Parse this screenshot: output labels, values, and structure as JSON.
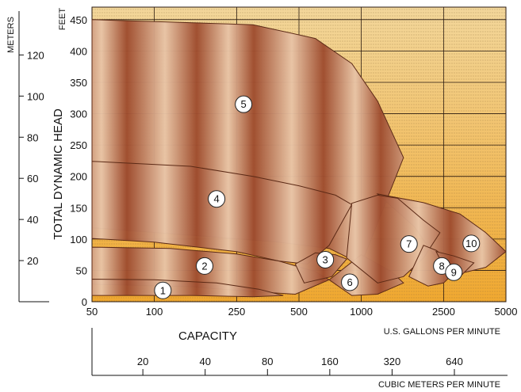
{
  "chart_data": {
    "type": "area",
    "title": "",
    "left_axis": {
      "unit": "FEET",
      "ticks": [
        0,
        50,
        100,
        150,
        200,
        250,
        300,
        350,
        400,
        450
      ],
      "ylim": [
        0,
        470
      ],
      "title": "TOTAL DYNAMIC HEAD"
    },
    "meters_axis": {
      "unit": "METERS",
      "ticks": [
        20,
        40,
        60,
        80,
        100,
        120
      ]
    },
    "x_axis": {
      "scale": "log",
      "unit": "U.S. GALLONS PER MINUTE",
      "ticks": [
        50,
        100,
        250,
        500,
        1000,
        2500,
        5000
      ],
      "xlim": [
        50,
        5000
      ],
      "title": "CAPACITY"
    },
    "cubic_axis": {
      "unit": "CUBIC METERS PER MINUTE",
      "ticks": [
        20,
        40,
        80,
        160,
        320,
        640
      ]
    },
    "grid": true,
    "series": [
      {
        "name": "1",
        "points": [
          [
            50,
            36
          ],
          [
            100,
            35
          ],
          [
            200,
            30
          ],
          [
            320,
            20
          ],
          [
            420,
            10
          ],
          [
            300,
            8
          ],
          [
            150,
            10
          ],
          [
            50,
            10
          ]
        ]
      },
      {
        "name": "2",
        "points": [
          [
            50,
            87
          ],
          [
            120,
            85
          ],
          [
            250,
            76
          ],
          [
            400,
            65
          ],
          [
            600,
            48
          ],
          [
            700,
            35
          ],
          [
            480,
            12
          ],
          [
            300,
            16
          ],
          [
            150,
            24
          ],
          [
            50,
            28
          ]
        ]
      },
      {
        "name": "3",
        "points": [
          [
            600,
            78
          ],
          [
            750,
            75
          ],
          [
            850,
            68
          ],
          [
            720,
            40
          ],
          [
            530,
            30
          ],
          [
            480,
            60
          ]
        ]
      },
      {
        "name": "4",
        "points": [
          [
            50,
            224
          ],
          [
            150,
            216
          ],
          [
            300,
            200
          ],
          [
            500,
            185
          ],
          [
            750,
            170
          ],
          [
            900,
            155
          ],
          [
            700,
            90
          ],
          [
            550,
            60
          ],
          [
            400,
            65
          ],
          [
            250,
            80
          ],
          [
            100,
            95
          ],
          [
            50,
            101
          ]
        ]
      },
      {
        "name": "5",
        "points": [
          [
            50,
            450
          ],
          [
            300,
            442
          ],
          [
            600,
            420
          ],
          [
            900,
            380
          ],
          [
            1200,
            320
          ],
          [
            1500,
            250
          ],
          [
            1600,
            230
          ],
          [
            1000,
            60
          ],
          [
            700,
            85
          ],
          [
            400,
            95
          ],
          [
            200,
            103
          ],
          [
            50,
            118
          ]
        ]
      },
      {
        "name": "6",
        "points": [
          [
            1000,
            75
          ],
          [
            1400,
            48
          ],
          [
            1600,
            30
          ],
          [
            1200,
            12
          ],
          [
            900,
            10
          ],
          [
            700,
            35
          ]
        ]
      },
      {
        "name": "7",
        "points": [
          [
            900,
            157
          ],
          [
            1200,
            170
          ],
          [
            1500,
            165
          ],
          [
            2000,
            130
          ],
          [
            2400,
            110
          ],
          [
            2000,
            70
          ],
          [
            1600,
            40
          ],
          [
            1200,
            30
          ],
          [
            850,
            70
          ]
        ]
      },
      {
        "name": "8",
        "points": [
          [
            2000,
            90
          ],
          [
            2300,
            82
          ],
          [
            2700,
            65
          ],
          [
            3000,
            55
          ],
          [
            2500,
            30
          ],
          [
            2100,
            25
          ],
          [
            1700,
            40
          ]
        ]
      },
      {
        "name": "9",
        "points": [
          [
            2300,
            80
          ],
          [
            2800,
            73
          ],
          [
            3500,
            62
          ],
          [
            3000,
            40
          ],
          [
            2700,
            35
          ]
        ]
      },
      {
        "name": "10",
        "points": [
          [
            1200,
            172
          ],
          [
            2000,
            158
          ],
          [
            3000,
            140
          ],
          [
            4000,
            110
          ],
          [
            5000,
            80
          ],
          [
            4000,
            55
          ],
          [
            3000,
            45
          ],
          [
            2300,
            70
          ],
          [
            1800,
            120
          ]
        ]
      }
    ],
    "labels": [
      {
        "text": "1",
        "x": 110,
        "y": 18
      },
      {
        "text": "2",
        "x": 175,
        "y": 57
      },
      {
        "text": "3",
        "x": 670,
        "y": 67
      },
      {
        "text": "4",
        "x": 200,
        "y": 164
      },
      {
        "text": "5",
        "x": 270,
        "y": 315
      },
      {
        "text": "6",
        "x": 880,
        "y": 31
      },
      {
        "text": "7",
        "x": 1700,
        "y": 92
      },
      {
        "text": "8",
        "x": 2450,
        "y": 57
      },
      {
        "text": "9",
        "x": 2800,
        "y": 47
      },
      {
        "text": "10",
        "x": 3400,
        "y": 93
      }
    ],
    "colors": {
      "background_top": "#f3d79b",
      "background_bottom": "#f0a830",
      "stripe": "#8a6a3a",
      "band_dark": "#9e4c2e",
      "band_light": "#e8c4a6",
      "band_outline": "#5c2a16"
    }
  }
}
